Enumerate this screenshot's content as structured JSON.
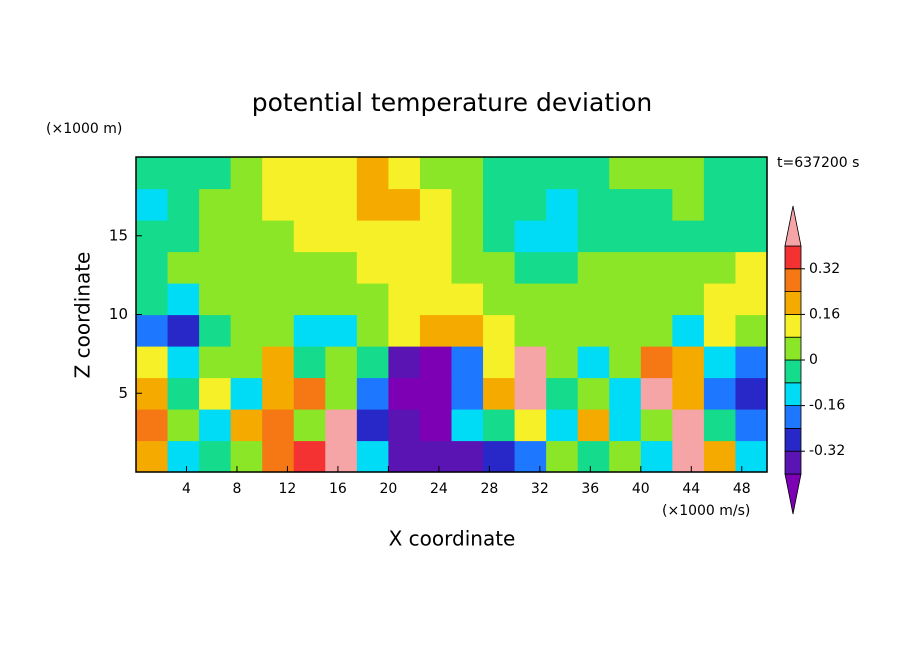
{
  "chart_data": {
    "type": "contour",
    "title": "potential temperature deviation",
    "y_unit_label": "(×1000 m)",
    "time_label": "t=637200 s",
    "xlabel": "X coordinate",
    "x_unit_label": "(×1000 m/s)",
    "ylabel": "Z coordinate",
    "xlim": [
      0,
      50
    ],
    "ylim": [
      0,
      20
    ],
    "xticks": [
      4,
      8,
      12,
      16,
      20,
      24,
      28,
      32,
      36,
      40,
      44,
      48
    ],
    "yticks": [
      5,
      10,
      15
    ],
    "x": [
      1.25,
      3.75,
      6.25,
      8.75,
      11.25,
      13.75,
      16.25,
      18.75,
      21.25,
      23.75,
      26.25,
      28.75,
      31.25,
      33.75,
      36.25,
      38.75,
      41.25,
      43.75,
      46.25,
      48.75
    ],
    "y": [
      1,
      3,
      5,
      7,
      9,
      11,
      13,
      15,
      17,
      19
    ],
    "z": [
      [
        0.2,
        -0.12,
        -0.04,
        0.04,
        0.28,
        0.36,
        0.45,
        -0.12,
        -0.36,
        -0.36,
        -0.36,
        -0.28,
        -0.2,
        0.04,
        -0.04,
        0.04,
        -0.12,
        0.45,
        0.2,
        -0.12
      ],
      [
        0.28,
        0.04,
        -0.12,
        0.2,
        0.28,
        0.04,
        0.45,
        -0.28,
        -0.36,
        -0.45,
        -0.12,
        -0.04,
        0.12,
        -0.12,
        0.2,
        -0.12,
        0.04,
        0.45,
        -0.04,
        -0.2
      ],
      [
        0.2,
        -0.04,
        0.12,
        -0.12,
        0.2,
        0.28,
        0.04,
        -0.2,
        -0.45,
        -0.45,
        -0.2,
        0.2,
        0.45,
        -0.04,
        0.04,
        -0.12,
        0.45,
        0.2,
        -0.2,
        -0.28
      ],
      [
        0.12,
        -0.12,
        0.04,
        0.04,
        0.2,
        -0.04,
        0.04,
        -0.04,
        -0.36,
        -0.45,
        -0.2,
        0.12,
        0.45,
        0.04,
        -0.12,
        0.04,
        0.28,
        0.2,
        -0.12,
        -0.2
      ],
      [
        -0.2,
        -0.28,
        -0.04,
        0.04,
        0.04,
        -0.12,
        -0.12,
        0.04,
        0.12,
        0.2,
        0.2,
        0.12,
        0.04,
        0.04,
        0.04,
        0.04,
        0.04,
        -0.12,
        0.12,
        0.04
      ],
      [
        -0.04,
        -0.12,
        0.04,
        0.04,
        0.04,
        0.04,
        0.04,
        0.04,
        0.12,
        0.12,
        0.12,
        0.04,
        0.04,
        0.04,
        0.04,
        0.04,
        0.04,
        0.04,
        0.12,
        0.12
      ],
      [
        -0.04,
        0.04,
        0.04,
        0.04,
        0.04,
        0.04,
        0.04,
        0.12,
        0.12,
        0.12,
        0.04,
        0.04,
        -0.04,
        -0.04,
        0.04,
        0.04,
        0.04,
        0.04,
        0.04,
        0.12
      ],
      [
        -0.04,
        -0.04,
        0.04,
        0.04,
        0.04,
        0.12,
        0.12,
        0.12,
        0.12,
        0.12,
        0.04,
        -0.04,
        -0.12,
        -0.12,
        -0.04,
        -0.04,
        -0.04,
        -0.04,
        -0.04,
        -0.04
      ],
      [
        -0.12,
        -0.04,
        0.04,
        0.04,
        0.12,
        0.12,
        0.12,
        0.2,
        0.2,
        0.12,
        0.04,
        -0.04,
        -0.04,
        -0.12,
        -0.04,
        -0.04,
        -0.04,
        0.04,
        -0.04,
        -0.04
      ],
      [
        -0.04,
        -0.04,
        -0.04,
        0.04,
        0.12,
        0.12,
        0.12,
        0.2,
        0.12,
        0.04,
        0.04,
        -0.04,
        -0.04,
        -0.04,
        -0.04,
        0.04,
        0.04,
        0.04,
        -0.04,
        -0.04
      ]
    ],
    "levels": [
      -0.4,
      -0.32,
      -0.24,
      -0.16,
      -0.08,
      0,
      0.08,
      0.16,
      0.24,
      0.32,
      0.4
    ],
    "colors": [
      "#7d00b4",
      "#5a14b4",
      "#2828c8",
      "#1e78ff",
      "#00dcf5",
      "#14dc8c",
      "#8ce628",
      "#f5f028",
      "#f5aa00",
      "#f57814",
      "#f53232",
      "#f5a5a5"
    ],
    "colorbar_ticks": [
      0.32,
      0.16,
      0,
      -0.16,
      -0.32
    ]
  }
}
